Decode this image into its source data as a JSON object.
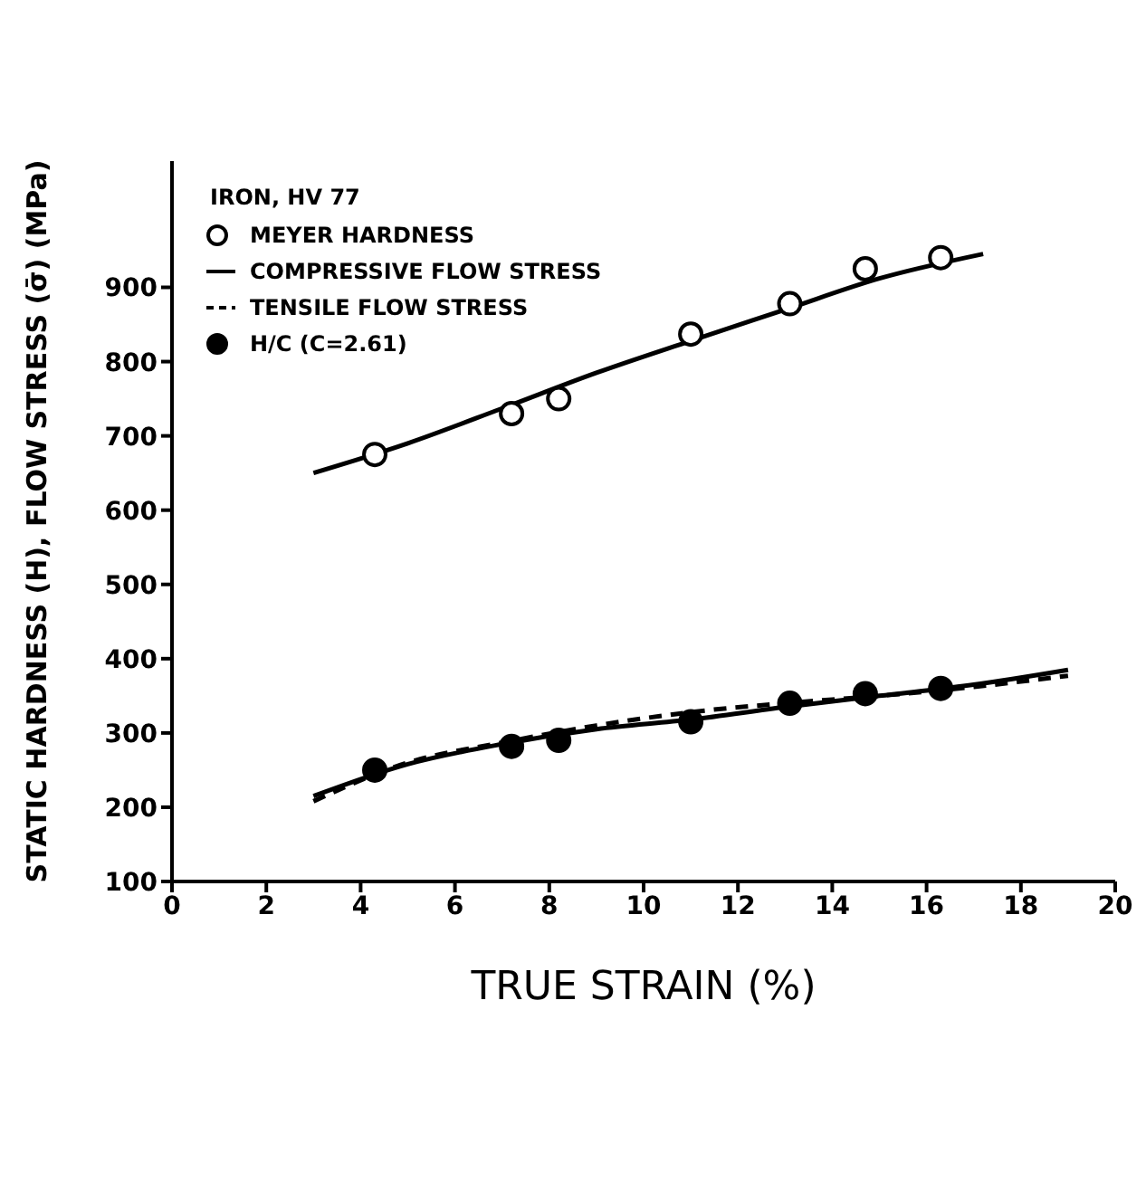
{
  "chart_data": {
    "type": "line",
    "xlabel": "TRUE STRAIN (%)",
    "ylabel": "STATIC HARDNESS (H), FLOW STRESS (σ̄) (MPa)",
    "legend_title": "IRON, HV 77",
    "legend": "top left",
    "grid": false,
    "xlim": [
      0,
      20
    ],
    "xticks": [
      0,
      2,
      4,
      6,
      8,
      10,
      12,
      14,
      16,
      18,
      20
    ],
    "ylim": [
      100,
      1070
    ],
    "yticks": [
      100,
      200,
      300,
      400,
      500,
      600,
      700,
      800,
      900
    ],
    "series": [
      {
        "name": "MEYER HARDNESS",
        "type": "scatter",
        "marker": "circle",
        "color": "#ffffff",
        "x": [
          4.3,
          7.2,
          8.2,
          11,
          13.1,
          14.7,
          16.3
        ],
        "values": [
          675,
          730,
          750,
          837,
          878,
          925,
          940
        ]
      },
      {
        "line_style": "solid",
        "marker": "none",
        "color": "#000000",
        "x": [
          3,
          5,
          7,
          9,
          11,
          13,
          15,
          17.2
        ],
        "values": [
          650,
          690,
          737,
          785,
          828,
          870,
          912,
          945
        ]
      },
      {
        "name": "COMPRESSIVE FLOW STRESS",
        "line_style": "solid",
        "marker": "none",
        "color": "#000000",
        "x": [
          3,
          5,
          7,
          9,
          11,
          13,
          15,
          17,
          19
        ],
        "values": [
          215,
          258,
          285,
          305,
          318,
          335,
          350,
          365,
          385
        ]
      },
      {
        "name": "TENSILE FLOW STRESS",
        "line_style": "dashed",
        "marker": "none",
        "color": "#000000",
        "x": [
          3,
          5,
          7,
          9,
          11,
          13,
          15,
          17,
          19
        ],
        "values": [
          208,
          260,
          287,
          310,
          328,
          340,
          350,
          362,
          377
        ]
      },
      {
        "name": "H/C (C=2.61)",
        "type": "scatter",
        "marker": "circle",
        "color": "#000000",
        "x": [
          4.3,
          7.2,
          8.2,
          11,
          13.1,
          14.7,
          16.3
        ],
        "values": [
          250,
          282,
          290,
          315,
          340,
          353,
          360
        ]
      }
    ]
  }
}
